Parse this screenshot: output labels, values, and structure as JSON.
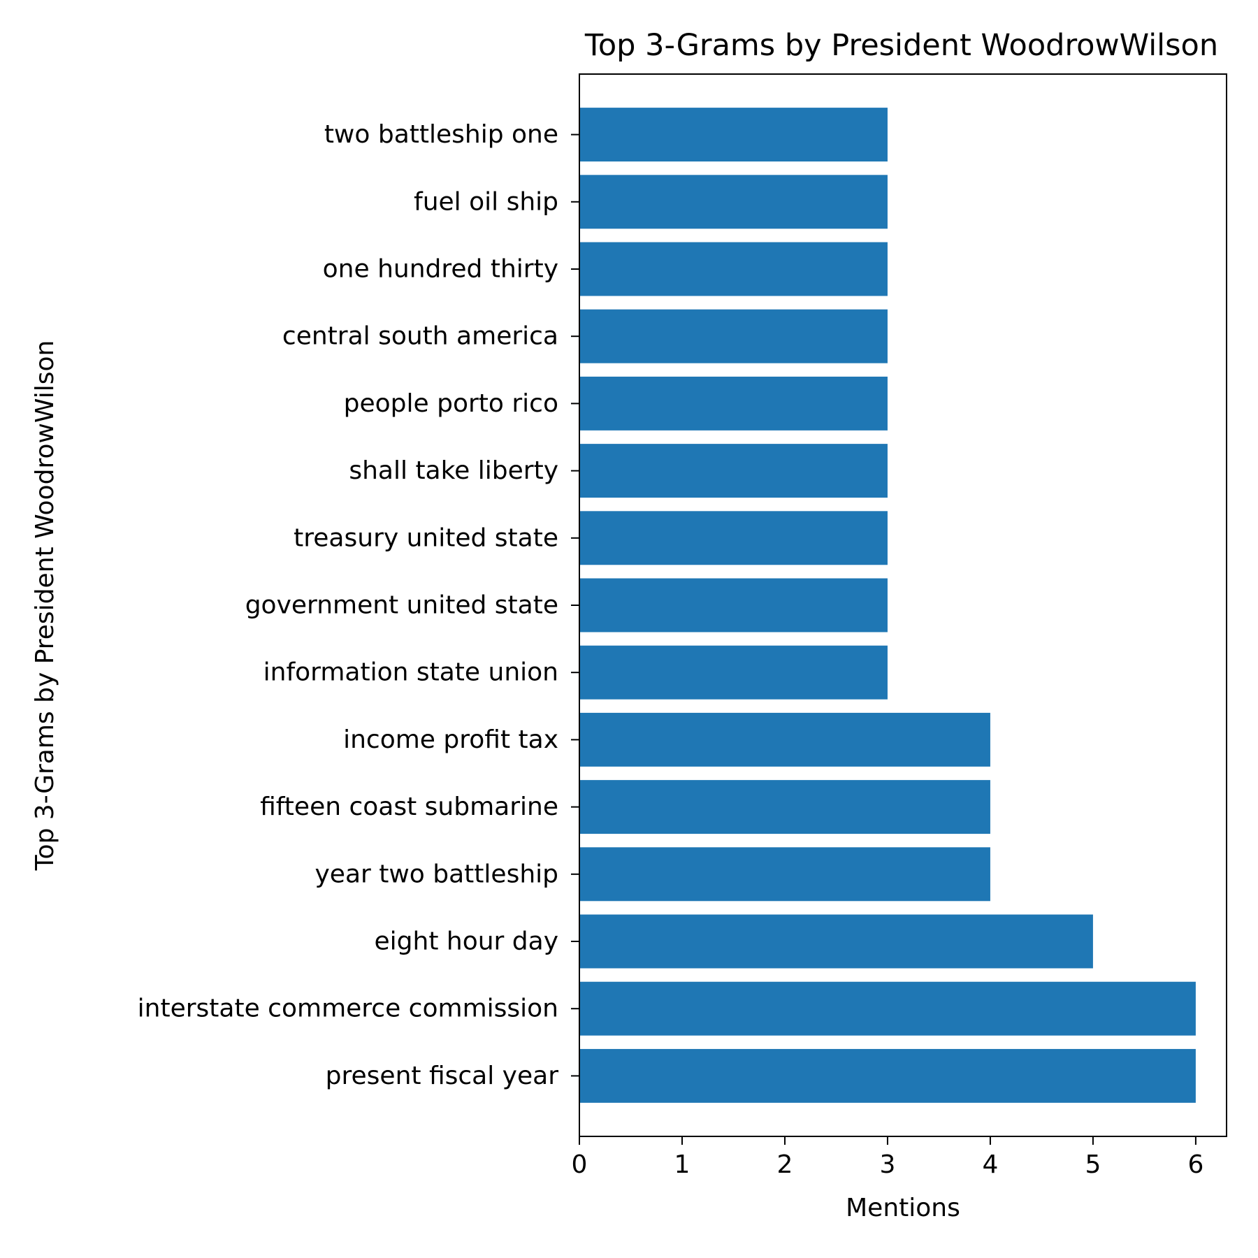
{
  "chart_data": {
    "type": "bar",
    "orientation": "horizontal",
    "title": "Top 3-Grams by President WoodrowWilson",
    "xlabel": "Mentions",
    "ylabel": "Top 3-Grams by President WoodrowWilson",
    "categories": [
      "present fiscal year",
      "interstate commerce commission",
      "eight hour day",
      "year two battleship",
      "fifteen coast submarine",
      "income profit tax",
      "information state union",
      "government united state",
      "treasury united state",
      "shall take liberty",
      "people porto rico",
      "central south america",
      "one hundred thirty",
      "fuel oil ship",
      "two battleship one"
    ],
    "values": [
      6,
      6,
      5,
      4,
      4,
      4,
      3,
      3,
      3,
      3,
      3,
      3,
      3,
      3,
      3
    ],
    "xlim": [
      0,
      6.3
    ],
    "xticks": [
      0,
      1,
      2,
      3,
      4,
      5,
      6
    ],
    "grid": false,
    "bar_color": "#1f77b4"
  }
}
